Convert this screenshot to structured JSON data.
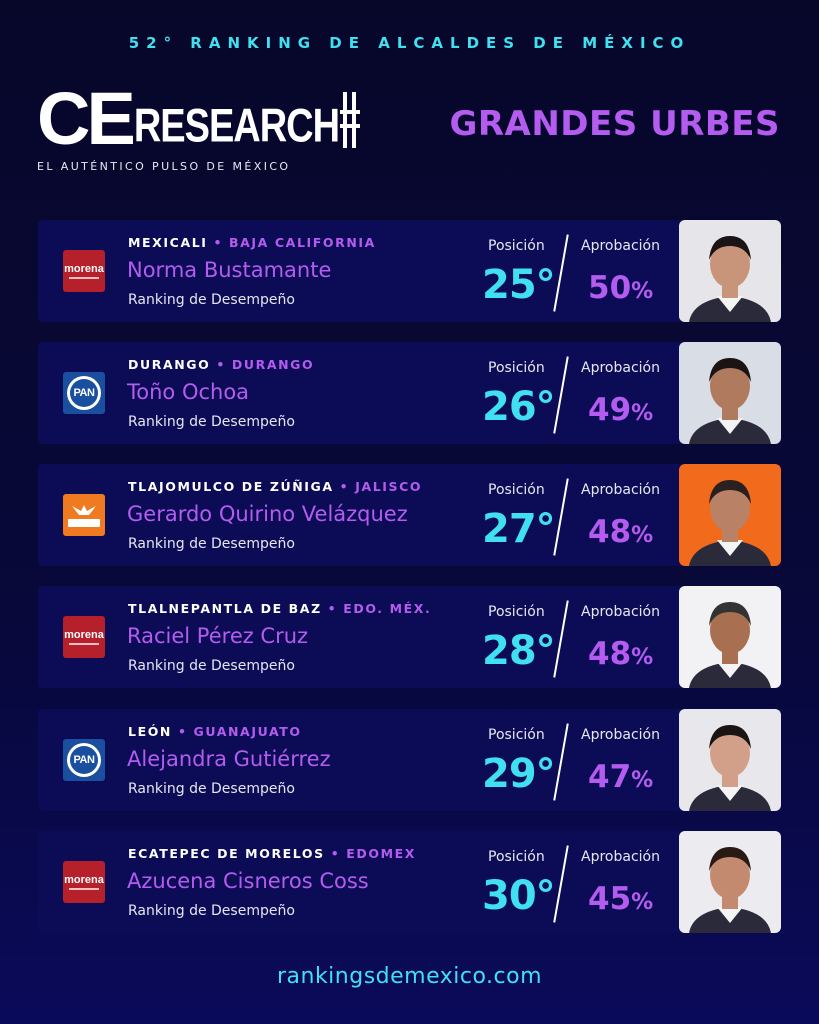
{
  "header": {
    "banner": "52° RANKING DE ALCALDES DE MÉXICO",
    "logo_ce": "CE",
    "logo_research": "RESEARCH",
    "tagline": "EL AUTÉNTICO PULSO DE MÉXICO",
    "section_title": "GRANDES URBES"
  },
  "labels": {
    "position": "Posición",
    "approval": "Aprobación",
    "subtitle": "Ranking de Desempeño",
    "separator": " • ",
    "percent": "%"
  },
  "party_labels": {
    "morena": "morena",
    "pan": "PAN",
    "mc": "MOVIMIENTO CIUDADANO"
  },
  "entries": [
    {
      "city": "MEXICALI",
      "state": "BAJA CALIFORNIA",
      "name": "Norma Bustamante",
      "position": "25°",
      "approval": "50",
      "party": "morena",
      "photo_bg": "#e6e6ea"
    },
    {
      "city": "DURANGO",
      "state": "DURANGO",
      "name": "Toño Ochoa",
      "position": "26°",
      "approval": "49",
      "party": "pan",
      "photo_bg": "#d8dde6"
    },
    {
      "city": "TLAJOMULCO DE ZÚÑIGA",
      "state": "JALISCO",
      "name": "Gerardo Quirino Velázquez",
      "position": "27°",
      "approval": "48",
      "party": "mc",
      "photo_bg": "#f26a1b"
    },
    {
      "city": "TLALNEPANTLA DE BAZ",
      "state": "EDO. MÉX.",
      "name": "Raciel Pérez Cruz",
      "position": "28°",
      "approval": "48",
      "party": "morena",
      "photo_bg": "#f2f2f4"
    },
    {
      "city": "LEÓN",
      "state": "GUANAJUATO",
      "name": "Alejandra Gutiérrez",
      "position": "29°",
      "approval": "47",
      "party": "pan",
      "photo_bg": "#e8e8ec"
    },
    {
      "city": "ECATEPEC DE MORELOS",
      "state": "EDOMEX",
      "name": "Azucena Cisneros Coss",
      "position": "30°",
      "approval": "45",
      "party": "morena",
      "photo_bg": "#ececf0"
    }
  ],
  "colors": {
    "background": "#07072a",
    "card": "#0c0c56",
    "cyan": "#40e0f0",
    "purple": "#b45cf0",
    "morena": "#b5202a",
    "pan": "#1a4fa0",
    "mc": "#f07a20"
  },
  "footer": {
    "url": "rankingsdemexico.com"
  }
}
